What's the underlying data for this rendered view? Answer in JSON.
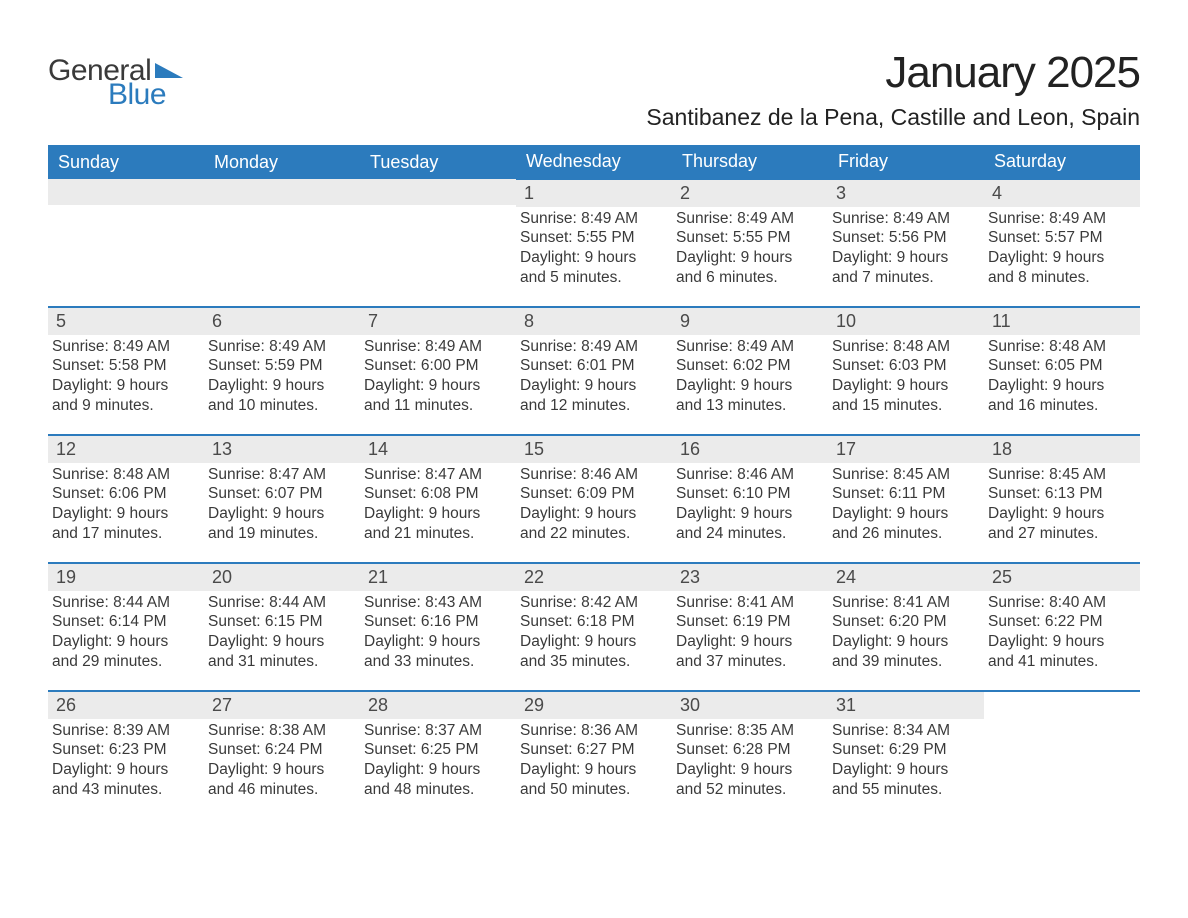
{
  "logo": {
    "word1": "General",
    "word2": "Blue",
    "triangle_color": "#2b7bbd",
    "text_color_1": "#3a3a3a",
    "text_color_2": "#2b7bbd"
  },
  "title": "January 2025",
  "location": "Santibanez de la Pena, Castille and Leon, Spain",
  "colors": {
    "header_bg": "#2c7bbd",
    "header_text": "#ffffff",
    "daynum_bg": "#ebebeb",
    "daynum_text": "#4a4a4a",
    "body_text": "#3a3a3a",
    "row_border": "#2c7bbd",
    "page_bg": "#ffffff"
  },
  "typography": {
    "title_pt": 44,
    "location_pt": 23,
    "weekday_pt": 18,
    "daynum_pt": 18,
    "body_pt": 15.5
  },
  "calendar": {
    "type": "calendar-table",
    "columns": [
      "Sunday",
      "Monday",
      "Tuesday",
      "Wednesday",
      "Thursday",
      "Friday",
      "Saturday"
    ],
    "lead_blanks": 3,
    "trail_blanks": 1,
    "days": [
      {
        "n": "1",
        "sunrise": "Sunrise: 8:49 AM",
        "sunset": "Sunset: 5:55 PM",
        "dl1": "Daylight: 9 hours",
        "dl2": "and 5 minutes."
      },
      {
        "n": "2",
        "sunrise": "Sunrise: 8:49 AM",
        "sunset": "Sunset: 5:55 PM",
        "dl1": "Daylight: 9 hours",
        "dl2": "and 6 minutes."
      },
      {
        "n": "3",
        "sunrise": "Sunrise: 8:49 AM",
        "sunset": "Sunset: 5:56 PM",
        "dl1": "Daylight: 9 hours",
        "dl2": "and 7 minutes."
      },
      {
        "n": "4",
        "sunrise": "Sunrise: 8:49 AM",
        "sunset": "Sunset: 5:57 PM",
        "dl1": "Daylight: 9 hours",
        "dl2": "and 8 minutes."
      },
      {
        "n": "5",
        "sunrise": "Sunrise: 8:49 AM",
        "sunset": "Sunset: 5:58 PM",
        "dl1": "Daylight: 9 hours",
        "dl2": "and 9 minutes."
      },
      {
        "n": "6",
        "sunrise": "Sunrise: 8:49 AM",
        "sunset": "Sunset: 5:59 PM",
        "dl1": "Daylight: 9 hours",
        "dl2": "and 10 minutes."
      },
      {
        "n": "7",
        "sunrise": "Sunrise: 8:49 AM",
        "sunset": "Sunset: 6:00 PM",
        "dl1": "Daylight: 9 hours",
        "dl2": "and 11 minutes."
      },
      {
        "n": "8",
        "sunrise": "Sunrise: 8:49 AM",
        "sunset": "Sunset: 6:01 PM",
        "dl1": "Daylight: 9 hours",
        "dl2": "and 12 minutes."
      },
      {
        "n": "9",
        "sunrise": "Sunrise: 8:49 AM",
        "sunset": "Sunset: 6:02 PM",
        "dl1": "Daylight: 9 hours",
        "dl2": "and 13 minutes."
      },
      {
        "n": "10",
        "sunrise": "Sunrise: 8:48 AM",
        "sunset": "Sunset: 6:03 PM",
        "dl1": "Daylight: 9 hours",
        "dl2": "and 15 minutes."
      },
      {
        "n": "11",
        "sunrise": "Sunrise: 8:48 AM",
        "sunset": "Sunset: 6:05 PM",
        "dl1": "Daylight: 9 hours",
        "dl2": "and 16 minutes."
      },
      {
        "n": "12",
        "sunrise": "Sunrise: 8:48 AM",
        "sunset": "Sunset: 6:06 PM",
        "dl1": "Daylight: 9 hours",
        "dl2": "and 17 minutes."
      },
      {
        "n": "13",
        "sunrise": "Sunrise: 8:47 AM",
        "sunset": "Sunset: 6:07 PM",
        "dl1": "Daylight: 9 hours",
        "dl2": "and 19 minutes."
      },
      {
        "n": "14",
        "sunrise": "Sunrise: 8:47 AM",
        "sunset": "Sunset: 6:08 PM",
        "dl1": "Daylight: 9 hours",
        "dl2": "and 21 minutes."
      },
      {
        "n": "15",
        "sunrise": "Sunrise: 8:46 AM",
        "sunset": "Sunset: 6:09 PM",
        "dl1": "Daylight: 9 hours",
        "dl2": "and 22 minutes."
      },
      {
        "n": "16",
        "sunrise": "Sunrise: 8:46 AM",
        "sunset": "Sunset: 6:10 PM",
        "dl1": "Daylight: 9 hours",
        "dl2": "and 24 minutes."
      },
      {
        "n": "17",
        "sunrise": "Sunrise: 8:45 AM",
        "sunset": "Sunset: 6:11 PM",
        "dl1": "Daylight: 9 hours",
        "dl2": "and 26 minutes."
      },
      {
        "n": "18",
        "sunrise": "Sunrise: 8:45 AM",
        "sunset": "Sunset: 6:13 PM",
        "dl1": "Daylight: 9 hours",
        "dl2": "and 27 minutes."
      },
      {
        "n": "19",
        "sunrise": "Sunrise: 8:44 AM",
        "sunset": "Sunset: 6:14 PM",
        "dl1": "Daylight: 9 hours",
        "dl2": "and 29 minutes."
      },
      {
        "n": "20",
        "sunrise": "Sunrise: 8:44 AM",
        "sunset": "Sunset: 6:15 PM",
        "dl1": "Daylight: 9 hours",
        "dl2": "and 31 minutes."
      },
      {
        "n": "21",
        "sunrise": "Sunrise: 8:43 AM",
        "sunset": "Sunset: 6:16 PM",
        "dl1": "Daylight: 9 hours",
        "dl2": "and 33 minutes."
      },
      {
        "n": "22",
        "sunrise": "Sunrise: 8:42 AM",
        "sunset": "Sunset: 6:18 PM",
        "dl1": "Daylight: 9 hours",
        "dl2": "and 35 minutes."
      },
      {
        "n": "23",
        "sunrise": "Sunrise: 8:41 AM",
        "sunset": "Sunset: 6:19 PM",
        "dl1": "Daylight: 9 hours",
        "dl2": "and 37 minutes."
      },
      {
        "n": "24",
        "sunrise": "Sunrise: 8:41 AM",
        "sunset": "Sunset: 6:20 PM",
        "dl1": "Daylight: 9 hours",
        "dl2": "and 39 minutes."
      },
      {
        "n": "25",
        "sunrise": "Sunrise: 8:40 AM",
        "sunset": "Sunset: 6:22 PM",
        "dl1": "Daylight: 9 hours",
        "dl2": "and 41 minutes."
      },
      {
        "n": "26",
        "sunrise": "Sunrise: 8:39 AM",
        "sunset": "Sunset: 6:23 PM",
        "dl1": "Daylight: 9 hours",
        "dl2": "and 43 minutes."
      },
      {
        "n": "27",
        "sunrise": "Sunrise: 8:38 AM",
        "sunset": "Sunset: 6:24 PM",
        "dl1": "Daylight: 9 hours",
        "dl2": "and 46 minutes."
      },
      {
        "n": "28",
        "sunrise": "Sunrise: 8:37 AM",
        "sunset": "Sunset: 6:25 PM",
        "dl1": "Daylight: 9 hours",
        "dl2": "and 48 minutes."
      },
      {
        "n": "29",
        "sunrise": "Sunrise: 8:36 AM",
        "sunset": "Sunset: 6:27 PM",
        "dl1": "Daylight: 9 hours",
        "dl2": "and 50 minutes."
      },
      {
        "n": "30",
        "sunrise": "Sunrise: 8:35 AM",
        "sunset": "Sunset: 6:28 PM",
        "dl1": "Daylight: 9 hours",
        "dl2": "and 52 minutes."
      },
      {
        "n": "31",
        "sunrise": "Sunrise: 8:34 AM",
        "sunset": "Sunset: 6:29 PM",
        "dl1": "Daylight: 9 hours",
        "dl2": "and 55 minutes."
      }
    ]
  }
}
